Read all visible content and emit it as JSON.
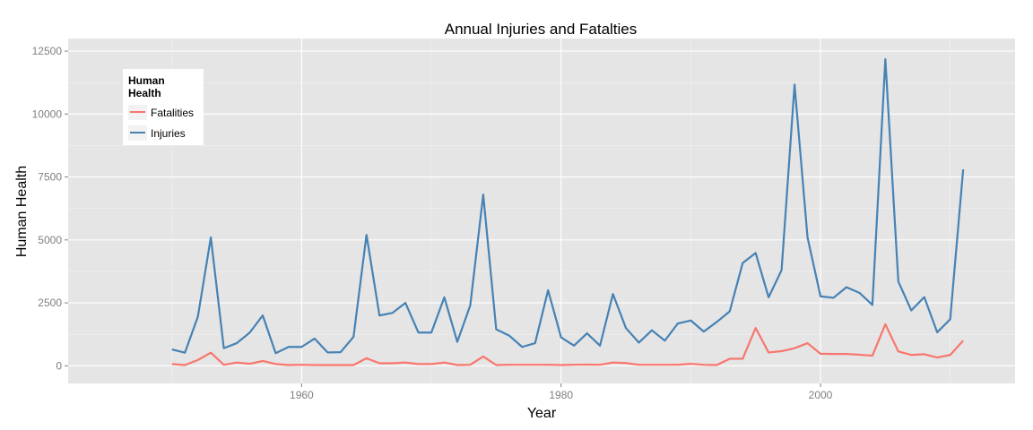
{
  "chart_data": {
    "type": "line",
    "title": "Annual Injuries and Fatalties",
    "xlabel": "Year",
    "ylabel": "Human Health",
    "xlim": [
      1942,
      2015
    ],
    "ylim": [
      -700,
      13000
    ],
    "x_ticks": [
      1960,
      1980,
      2000
    ],
    "y_ticks": [
      0,
      2500,
      5000,
      7500,
      10000,
      12500
    ],
    "y_tick_labels": [
      "0",
      "2500",
      "5000",
      "7500",
      "10000",
      "12500"
    ],
    "legend": {
      "title_line1": "Human",
      "title_line2": "Health",
      "position": "top-left"
    },
    "x": [
      1950,
      1951,
      1952,
      1953,
      1954,
      1955,
      1956,
      1957,
      1958,
      1959,
      1960,
      1961,
      1962,
      1963,
      1964,
      1965,
      1966,
      1967,
      1968,
      1969,
      1970,
      1971,
      1972,
      1973,
      1974,
      1975,
      1976,
      1977,
      1978,
      1979,
      1980,
      1981,
      1982,
      1983,
      1984,
      1985,
      1986,
      1987,
      1988,
      1989,
      1990,
      1991,
      1992,
      1993,
      1994,
      1995,
      1996,
      1997,
      1998,
      1999,
      2000,
      2001,
      2002,
      2003,
      2004,
      2005,
      2006,
      2007,
      2008,
      2009,
      2010,
      2011
    ],
    "series": [
      {
        "name": "Fatalities",
        "color": "#f8766d",
        "values": [
          70,
          30,
          230,
          520,
          40,
          130,
          80,
          190,
          70,
          30,
          40,
          30,
          30,
          30,
          30,
          300,
          100,
          100,
          130,
          70,
          70,
          130,
          30,
          40,
          370,
          30,
          40,
          40,
          40,
          40,
          30,
          40,
          50,
          40,
          130,
          110,
          40,
          40,
          40,
          40,
          80,
          40,
          30,
          280,
          280,
          1500,
          530,
          580,
          700,
          900,
          480,
          470,
          470,
          440,
          400,
          1650,
          570,
          430,
          460,
          330,
          430,
          1000
        ]
      },
      {
        "name": "Injuries",
        "color": "#4682b4",
        "values": [
          650,
          520,
          1950,
          5100,
          700,
          900,
          1320,
          2000,
          500,
          750,
          750,
          1080,
          530,
          540,
          1150,
          5200,
          2000,
          2100,
          2500,
          1320,
          1320,
          2720,
          950,
          2400,
          6800,
          1450,
          1200,
          750,
          900,
          3000,
          1130,
          800,
          1290,
          800,
          2850,
          1500,
          920,
          1410,
          1000,
          1680,
          1800,
          1360,
          1740,
          2160,
          4080,
          4480,
          2720,
          3800,
          11170,
          5100,
          2760,
          2700,
          3120,
          2900,
          2420,
          12180,
          3350,
          2200,
          2730,
          1330,
          1850,
          7800
        ]
      }
    ]
  },
  "colors": {
    "panel_bg": "#e5e5e5",
    "grid_major": "#ffffff",
    "grid_minor": "#f2f2f2"
  }
}
